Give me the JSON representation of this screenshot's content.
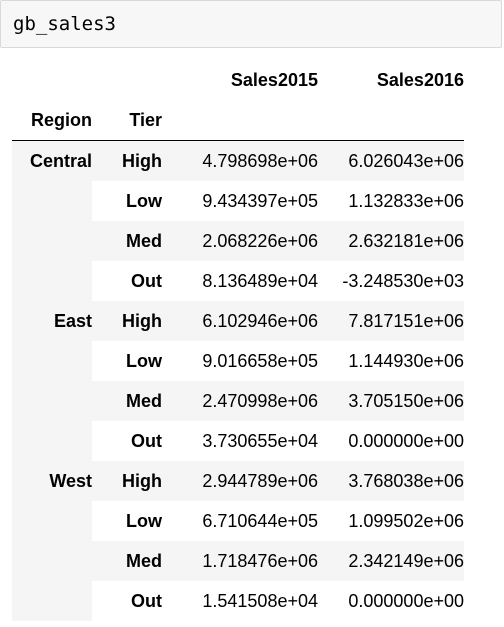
{
  "cell": {
    "code": "gb_sales3"
  },
  "table": {
    "column_headers": [
      "Sales2015",
      "Sales2016"
    ],
    "index_names": [
      "Region",
      "Tier"
    ],
    "groups": [
      {
        "region": "Central",
        "rows": [
          {
            "tier": "High",
            "sales2015": "4.798698e+06",
            "sales2016": "6.026043e+06"
          },
          {
            "tier": "Low",
            "sales2015": "9.434397e+05",
            "sales2016": "1.132833e+06"
          },
          {
            "tier": "Med",
            "sales2015": "2.068226e+06",
            "sales2016": "2.632181e+06"
          },
          {
            "tier": "Out",
            "sales2015": "8.136489e+04",
            "sales2016": "-3.248530e+03"
          }
        ]
      },
      {
        "region": "East",
        "rows": [
          {
            "tier": "High",
            "sales2015": "6.102946e+06",
            "sales2016": "7.817151e+06"
          },
          {
            "tier": "Low",
            "sales2015": "9.016658e+05",
            "sales2016": "1.144930e+06"
          },
          {
            "tier": "Med",
            "sales2015": "2.470998e+06",
            "sales2016": "3.705150e+06"
          },
          {
            "tier": "Out",
            "sales2015": "3.730655e+04",
            "sales2016": "0.000000e+00"
          }
        ]
      },
      {
        "region": "West",
        "rows": [
          {
            "tier": "High",
            "sales2015": "2.944789e+06",
            "sales2016": "3.768038e+06"
          },
          {
            "tier": "Low",
            "sales2015": "6.710644e+05",
            "sales2016": "1.099502e+06"
          },
          {
            "tier": "Med",
            "sales2015": "1.718476e+06",
            "sales2016": "2.342149e+06"
          },
          {
            "tier": "Out",
            "sales2015": "1.541508e+04",
            "sales2016": "0.000000e+00"
          }
        ]
      }
    ]
  }
}
